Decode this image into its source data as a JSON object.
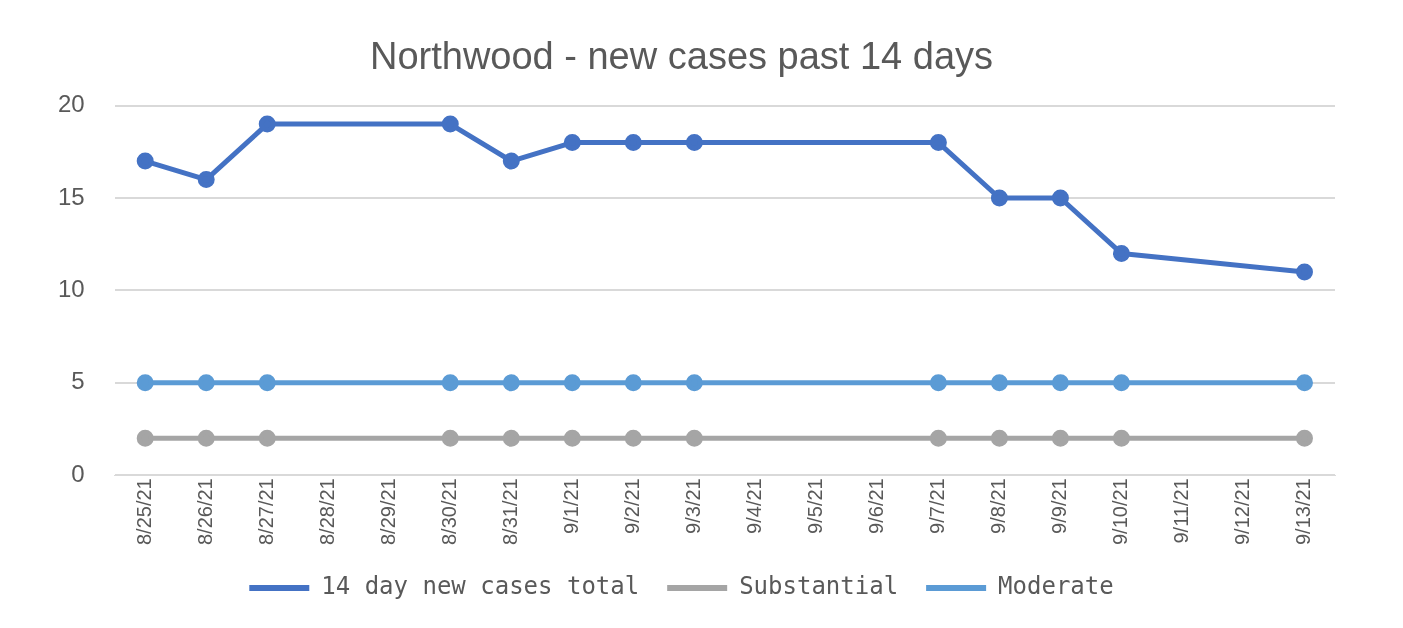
{
  "chart_data": {
    "type": "line",
    "title": "Northwood - new cases past 14 days",
    "x": [
      "--08-25",
      "--08-26",
      "--08-27",
      "--08-30",
      "--08-31",
      "--09-01",
      "--09-02",
      "--09-03",
      "--09-07",
      "--09-08",
      "--09-09",
      "--09-10",
      "--09-13"
    ],
    "series": [
      {
        "name": "14 day new cases total",
        "color": "#4472c4",
        "values": [
          17,
          16,
          19,
          19,
          17,
          18,
          18,
          18,
          18,
          15,
          15,
          12,
          11
        ]
      },
      {
        "name": "Substantial",
        "color": "#a5a5a5",
        "values": [
          2,
          2,
          2,
          2,
          2,
          2,
          2,
          2,
          2,
          2,
          2,
          2,
          2
        ]
      },
      {
        "name": "Moderate",
        "color": "#5b9bd5",
        "values": [
          5,
          5,
          5,
          5,
          5,
          5,
          5,
          5,
          5,
          5,
          5,
          5,
          5
        ]
      }
    ],
    "xlim": [
      "--08-24T12:00",
      "--09-13T12:00"
    ],
    "xticks": [
      {
        "value": "--08-25",
        "label": "8/25/21"
      },
      {
        "value": "--08-26",
        "label": "8/26/21"
      },
      {
        "value": "--08-27",
        "label": "8/27/21"
      },
      {
        "value": "--08-28",
        "label": "8/28/21"
      },
      {
        "value": "--08-29",
        "label": "8/29/21"
      },
      {
        "value": "--08-30",
        "label": "8/30/21"
      },
      {
        "value": "--08-31",
        "label": "8/31/21"
      },
      {
        "value": "--09-01",
        "label": "9/1/21"
      },
      {
        "value": "--09-02",
        "label": "9/2/21"
      },
      {
        "value": "--09-03",
        "label": "9/3/21"
      },
      {
        "value": "--09-04",
        "label": "9/4/21"
      },
      {
        "value": "--09-05",
        "label": "9/5/21"
      },
      {
        "value": "--09-06",
        "label": "9/6/21"
      },
      {
        "value": "--09-07",
        "label": "9/7/21"
      },
      {
        "value": "--09-08",
        "label": "9/8/21"
      },
      {
        "value": "--09-09",
        "label": "9/9/21"
      },
      {
        "value": "--09-10",
        "label": "9/10/21"
      },
      {
        "value": "--09-11",
        "label": "9/11/21"
      },
      {
        "value": "--09-12",
        "label": "9/12/21"
      },
      {
        "value": "--09-13",
        "label": "9/13/21"
      }
    ],
    "ylim": [
      0,
      20
    ],
    "yticks": [
      0,
      5,
      10,
      15,
      20
    ],
    "grid": "y",
    "legend": "bottom",
    "marker": "circle",
    "line_style": "solid"
  }
}
